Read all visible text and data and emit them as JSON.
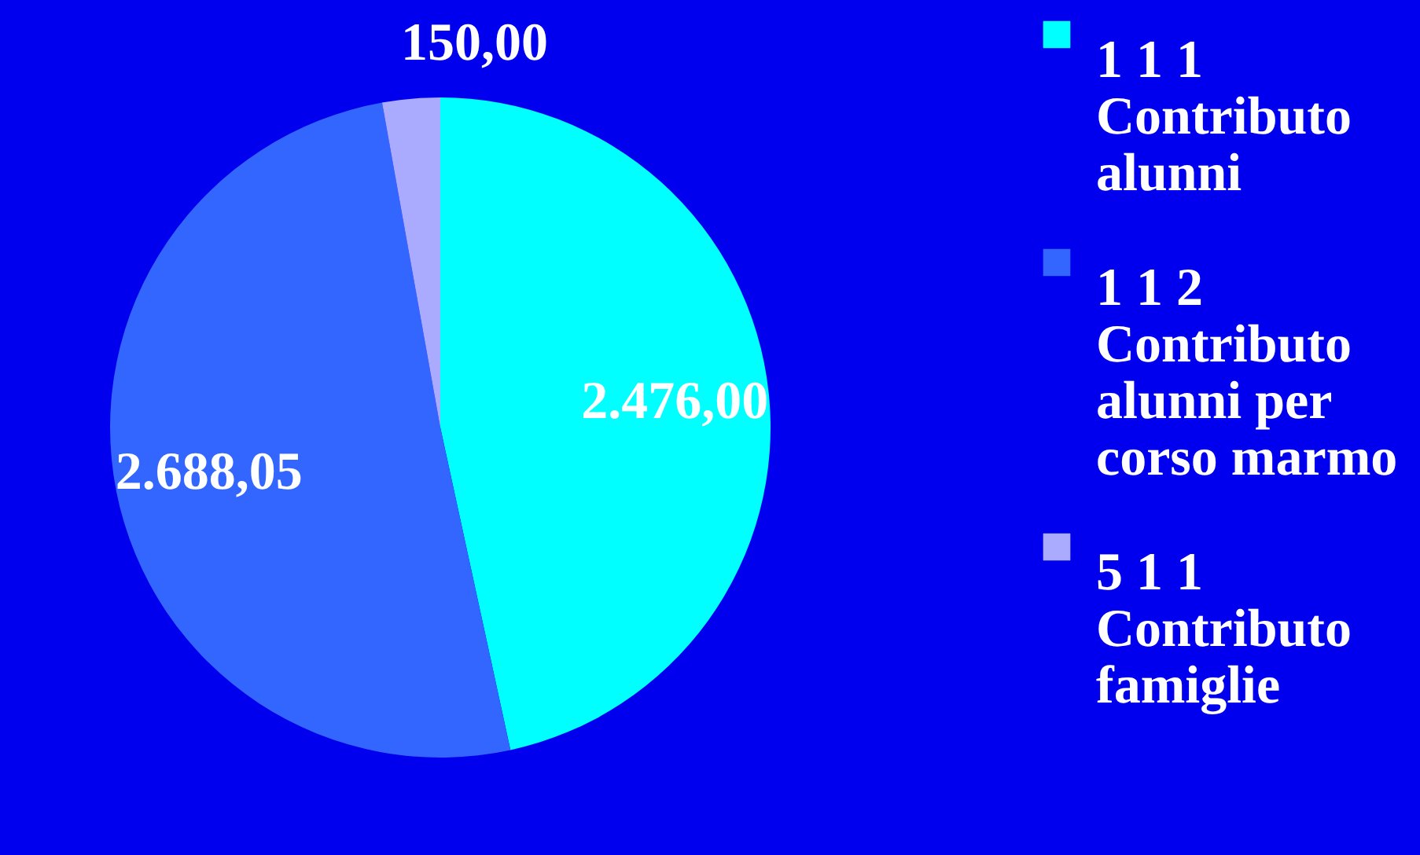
{
  "chart_data": {
    "type": "pie",
    "categories": [
      "1 1 1 Contributo alunni",
      "1 1 2 Contributo alunni per corso marmo",
      "5 1 1 Contributo famiglie"
    ],
    "values": [
      2476.0,
      2688.05,
      150.0
    ],
    "value_labels": [
      "2.476,00",
      "2.688,05",
      "150,00"
    ],
    "colors": [
      "#00ffff",
      "#3366ff",
      "#aaaaff"
    ],
    "legend": "right"
  }
}
